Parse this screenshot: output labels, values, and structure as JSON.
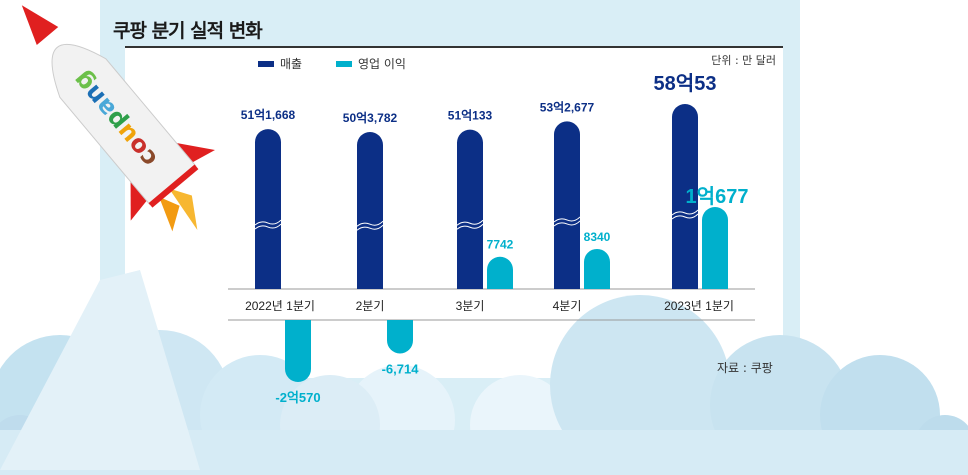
{
  "chart_data": {
    "type": "bar",
    "title": "쿠팡 분기 실적 변화",
    "unit": "단위 : 만 달러",
    "source": "자료 : 쿠팡",
    "categories": [
      "2022년 1분기",
      "2분기",
      "3분기",
      "4분기",
      "2023년 1분기"
    ],
    "series": [
      {
        "name": "매출",
        "color": "#0c2f86",
        "values": [
          511668,
          503782,
          510133,
          532677,
          580053
        ],
        "labels": [
          "51억1,668",
          "50억3,782",
          "51억133",
          "53억2,677",
          "58억53"
        ]
      },
      {
        "name": "영업 이익",
        "color": "#00b0cc",
        "values": [
          -20570,
          -6714,
          7742,
          8340,
          10677
        ],
        "labels": [
          "-2억570",
          "-6,714",
          "7742",
          "8340",
          "1억677"
        ]
      }
    ],
    "axis_break": true,
    "grid": false,
    "legend": "top-left"
  },
  "logo": "coupang"
}
